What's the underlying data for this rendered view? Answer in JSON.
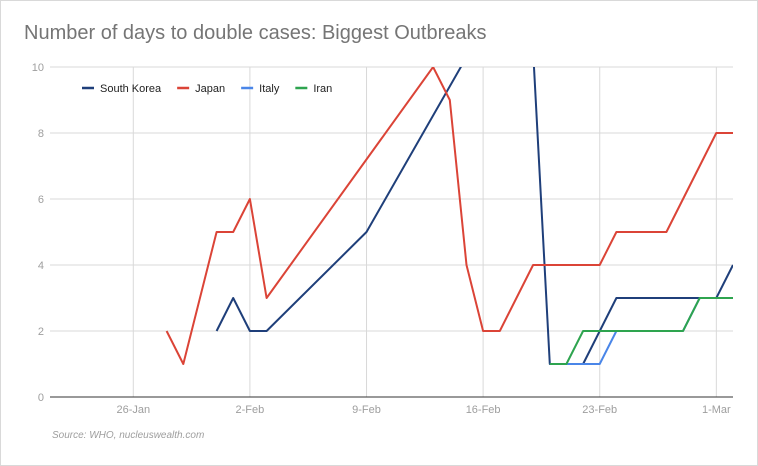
{
  "chart_data": {
    "type": "line",
    "title": "Number of days to double cases: Biggest Outbreaks",
    "source": "Source: WHO, nucleuswealth.com",
    "xlabel": "",
    "ylabel": "",
    "x_ticks": [
      "26-Jan",
      "2-Feb",
      "9-Feb",
      "16-Feb",
      "23-Feb",
      "1-Mar"
    ],
    "y_ticks": [
      "0",
      "2",
      "4",
      "6",
      "8",
      "10"
    ],
    "ylim": [
      0,
      10
    ],
    "xlim": [
      "21-Jan",
      "2-Mar"
    ],
    "grid": true,
    "legend_position": "top-left",
    "series": [
      {
        "name": "South Korea",
        "color": "#1f3f7a",
        "x": [
          "31-Jan",
          "1-Feb",
          "2-Feb",
          "3-Feb",
          "9-Feb",
          "15-Feb",
          "19-Feb",
          "20-Feb",
          "21-Feb",
          "22-Feb",
          "24-Feb",
          "29-Feb",
          "1-Mar",
          "2-Mar"
        ],
        "values": [
          2,
          3,
          2,
          2,
          5,
          10.3,
          10.5,
          1,
          1,
          1,
          3,
          3,
          3,
          4
        ]
      },
      {
        "name": "Japan",
        "color": "#db4437",
        "x": [
          "28-Jan",
          "29-Jan",
          "31-Jan",
          "1-Feb",
          "2-Feb",
          "3-Feb",
          "13-Feb",
          "14-Feb",
          "15-Feb",
          "16-Feb",
          "17-Feb",
          "19-Feb",
          "23-Feb",
          "24-Feb",
          "27-Feb",
          "1-Mar",
          "2-Mar"
        ],
        "values": [
          2,
          1,
          5,
          5,
          6,
          3,
          10,
          9,
          4,
          2,
          2,
          4,
          4,
          5,
          5,
          8,
          8
        ]
      },
      {
        "name": "Italy",
        "color": "#4a86e8",
        "x": [
          "20-Feb",
          "21-Feb",
          "22-Feb",
          "23-Feb",
          "24-Feb",
          "28-Feb",
          "29-Feb",
          "1-Mar",
          "2-Mar"
        ],
        "values": [
          1,
          1,
          1,
          1,
          2,
          2,
          3,
          3,
          3
        ]
      },
      {
        "name": "Iran",
        "color": "#2ea44f",
        "x": [
          "20-Feb",
          "21-Feb",
          "22-Feb",
          "23-Feb",
          "24-Feb",
          "28-Feb",
          "29-Feb",
          "1-Mar",
          "2-Mar"
        ],
        "values": [
          1,
          1,
          2,
          2,
          2,
          2,
          3,
          3,
          3
        ]
      }
    ]
  }
}
